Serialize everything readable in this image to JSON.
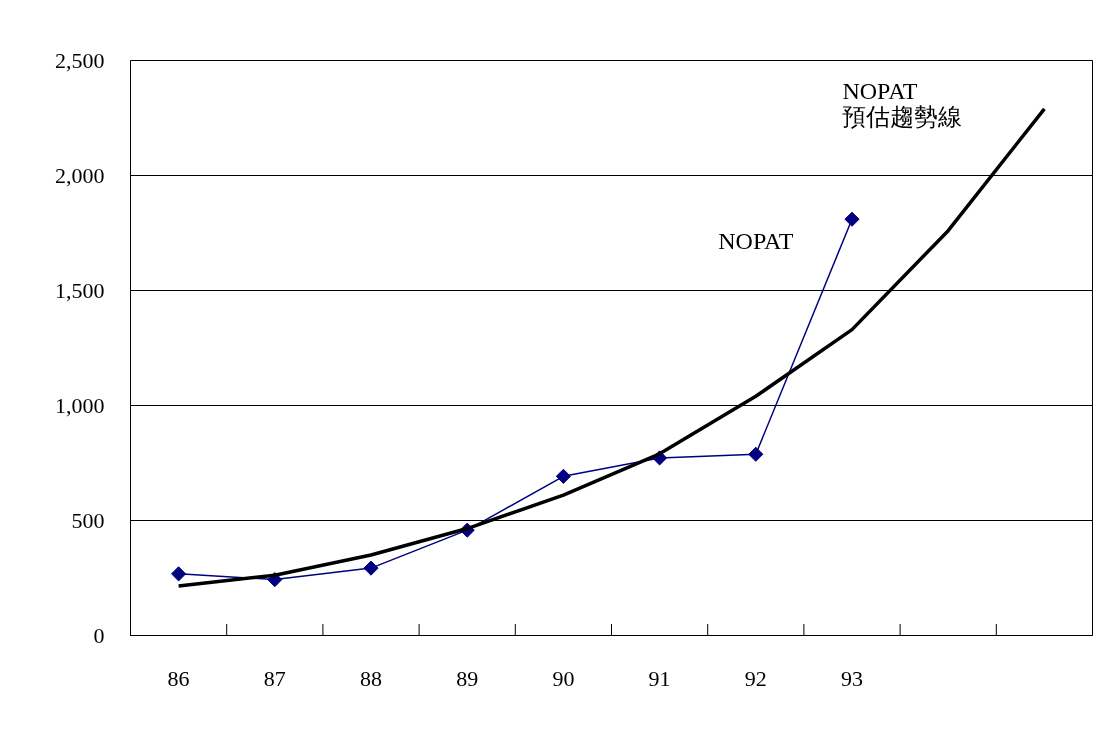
{
  "chart_data": {
    "type": "line",
    "categories": [
      "86",
      "87",
      "88",
      "89",
      "90",
      "91",
      "92",
      "93",
      null,
      null
    ],
    "series": [
      {
        "name": "NOPAT",
        "color": "#000080",
        "marker": "diamond",
        "values": [
          268,
          243,
          293,
          458,
          692,
          772,
          788,
          1810,
          null,
          null
        ]
      },
      {
        "name": "NOPAT\n預估趨勢線",
        "color": "#000000",
        "marker": "none",
        "values": [
          215,
          262,
          350,
          465,
          610,
          790,
          1040,
          1330,
          1760,
          2290
        ]
      }
    ],
    "ylim": [
      0,
      2500
    ],
    "yticks": [
      {
        "value": 0,
        "label": "0"
      },
      {
        "value": 500,
        "label": "500"
      },
      {
        "value": 1000,
        "label": "1,000"
      },
      {
        "value": 1500,
        "label": "1,500"
      },
      {
        "value": 2000,
        "label": "2,000"
      },
      {
        "value": 2500,
        "label": "2,500"
      }
    ],
    "grid": "y"
  }
}
